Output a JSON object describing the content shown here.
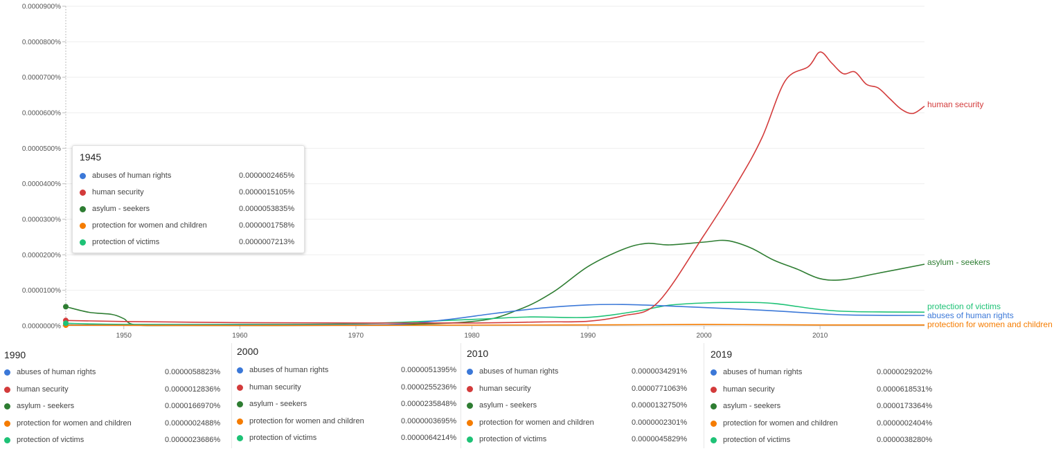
{
  "chart_data": {
    "type": "line",
    "title": "",
    "xlabel": "",
    "ylabel": "",
    "xlim": [
      1945,
      2019
    ],
    "ylim": [
      0,
      9e-07
    ],
    "x_ticks": [
      "1950",
      "1960",
      "1970",
      "1980",
      "1990",
      "2000",
      "2010"
    ],
    "y_ticks": [
      "0.0000000%",
      "0.0000100%",
      "0.0000200%",
      "0.0000300%",
      "0.0000400%",
      "0.0000500%",
      "0.0000600%",
      "0.0000700%",
      "0.0000800%",
      "0.0000900%"
    ],
    "grid": true,
    "series": [
      {
        "name": "abuses of human rights",
        "color": "#3b78d8",
        "points": [
          [
            1945,
            2.5e-09
          ],
          [
            1950,
            2e-09
          ],
          [
            1960,
            2e-09
          ],
          [
            1970,
            3e-09
          ],
          [
            1974,
            5e-09
          ],
          [
            1978,
            1.8e-08
          ],
          [
            1982,
            3.5e-08
          ],
          [
            1986,
            5e-08
          ],
          [
            1990,
            5.88e-08
          ],
          [
            1993,
            6e-08
          ],
          [
            1996,
            5.7e-08
          ],
          [
            2000,
            5.14e-08
          ],
          [
            2005,
            4.4e-08
          ],
          [
            2010,
            3.43e-08
          ],
          [
            2013,
            3e-08
          ],
          [
            2019,
            2.92e-08
          ]
        ]
      },
      {
        "name": "human security",
        "color": "#d33b3b",
        "points": [
          [
            1945,
            1.5e-08
          ],
          [
            1950,
            1.2e-08
          ],
          [
            1960,
            9e-09
          ],
          [
            1970,
            8e-09
          ],
          [
            1980,
            8e-09
          ],
          [
            1986,
            1.1e-08
          ],
          [
            1990,
            1.28e-08
          ],
          [
            1993,
            2.8e-08
          ],
          [
            1996,
            6.5e-08
          ],
          [
            2000,
            2.552e-07
          ],
          [
            2003,
            4.1e-07
          ],
          [
            2005,
            5.3e-07
          ],
          [
            2007,
            6.9e-07
          ],
          [
            2009,
            7.3e-07
          ],
          [
            2010,
            7.711e-07
          ],
          [
            2011,
            7.4e-07
          ],
          [
            2012,
            7.1e-07
          ],
          [
            2013,
            7.15e-07
          ],
          [
            2014,
            6.8e-07
          ],
          [
            2015,
            6.7e-07
          ],
          [
            2016,
            6.4e-07
          ],
          [
            2017,
            6.1e-07
          ],
          [
            2018,
            5.98e-07
          ],
          [
            2019,
            6.185e-07
          ]
        ]
      },
      {
        "name": "asylum - seekers",
        "color": "#2e7d32",
        "points": [
          [
            1945,
            5.38e-08
          ],
          [
            1947,
            3.8e-08
          ],
          [
            1949,
            3.2e-08
          ],
          [
            1950,
            2e-08
          ],
          [
            1951,
            3e-09
          ],
          [
            1955,
            1e-09
          ],
          [
            1970,
            2e-09
          ],
          [
            1980,
            1.2e-08
          ],
          [
            1984,
            4.5e-08
          ],
          [
            1987,
            9.5e-08
          ],
          [
            1990,
            1.67e-07
          ],
          [
            1993,
            2.15e-07
          ],
          [
            1995,
            2.32e-07
          ],
          [
            1997,
            2.28e-07
          ],
          [
            2000,
            2.358e-07
          ],
          [
            2002,
            2.4e-07
          ],
          [
            2004,
            2.2e-07
          ],
          [
            2006,
            1.85e-07
          ],
          [
            2008,
            1.6e-07
          ],
          [
            2010,
            1.328e-07
          ],
          [
            2012,
            1.3e-07
          ],
          [
            2015,
            1.48e-07
          ],
          [
            2019,
            1.734e-07
          ]
        ]
      },
      {
        "name": "protection for women and children",
        "color": "#f57c00",
        "points": [
          [
            1945,
            1.8e-09
          ],
          [
            1960,
            1e-09
          ],
          [
            1980,
            2e-09
          ],
          [
            1990,
            2.5e-09
          ],
          [
            2000,
            3.7e-09
          ],
          [
            2010,
            2.3e-09
          ],
          [
            2019,
            2.4e-09
          ]
        ]
      },
      {
        "name": "protection of victims",
        "color": "#1ec276",
        "points": [
          [
            1945,
            7.2e-09
          ],
          [
            1950,
            4e-09
          ],
          [
            1960,
            4e-09
          ],
          [
            1970,
            6e-09
          ],
          [
            1980,
            1.8e-08
          ],
          [
            1985,
            2.5e-08
          ],
          [
            1990,
            2.37e-08
          ],
          [
            1994,
            4e-08
          ],
          [
            1997,
            5.8e-08
          ],
          [
            2000,
            6.42e-08
          ],
          [
            2003,
            6.6e-08
          ],
          [
            2006,
            6.3e-08
          ],
          [
            2010,
            4.58e-08
          ],
          [
            2013,
            4e-08
          ],
          [
            2019,
            3.83e-08
          ]
        ]
      }
    ]
  },
  "tooltip": {
    "year": "1945",
    "rows": [
      {
        "name": "abuses of human rights",
        "value": "0.0000002465%",
        "color": "#3b78d8"
      },
      {
        "name": "human security",
        "value": "0.0000015105%",
        "color": "#d33b3b"
      },
      {
        "name": "asylum - seekers",
        "value": "0.0000053835%",
        "color": "#2e7d32"
      },
      {
        "name": "protection for women and children",
        "value": "0.0000001758%",
        "color": "#f57c00"
      },
      {
        "name": "protection of victims",
        "value": "0.0000007213%",
        "color": "#1ec276"
      }
    ]
  },
  "panels": [
    {
      "year": "1990",
      "rows": [
        {
          "name": "abuses of human rights",
          "value": "0.0000058823%",
          "color": "#3b78d8"
        },
        {
          "name": "human security",
          "value": "0.0000012836%",
          "color": "#d33b3b"
        },
        {
          "name": "asylum - seekers",
          "value": "0.0000166970%",
          "color": "#2e7d32"
        },
        {
          "name": "protection for women and children",
          "value": "0.0000002488%",
          "color": "#f57c00"
        },
        {
          "name": "protection of victims",
          "value": "0.0000023686%",
          "color": "#1ec276"
        }
      ]
    },
    {
      "year": "2000",
      "rows": [
        {
          "name": "abuses of human rights",
          "value": "0.0000051395%",
          "color": "#3b78d8"
        },
        {
          "name": "human security",
          "value": "0.0000255236%",
          "color": "#d33b3b"
        },
        {
          "name": "asylum - seekers",
          "value": "0.0000235848%",
          "color": "#2e7d32"
        },
        {
          "name": "protection for women and children",
          "value": "0.0000003695%",
          "color": "#f57c00"
        },
        {
          "name": "protection of victims",
          "value": "0.0000064214%",
          "color": "#1ec276"
        }
      ]
    },
    {
      "year": "2010",
      "rows": [
        {
          "name": "abuses of human rights",
          "value": "0.0000034291%",
          "color": "#3b78d8"
        },
        {
          "name": "human security",
          "value": "0.0000771063%",
          "color": "#d33b3b"
        },
        {
          "name": "asylum - seekers",
          "value": "0.0000132750%",
          "color": "#2e7d32"
        },
        {
          "name": "protection for women and children",
          "value": "0.0000002301%",
          "color": "#f57c00"
        },
        {
          "name": "protection of victims",
          "value": "0.0000045829%",
          "color": "#1ec276"
        }
      ]
    },
    {
      "year": "2019",
      "rows": [
        {
          "name": "abuses of human rights",
          "value": "0.0000029202%",
          "color": "#3b78d8"
        },
        {
          "name": "human security",
          "value": "0.0000618531%",
          "color": "#d33b3b"
        },
        {
          "name": "asylum - seekers",
          "value": "0.0000173364%",
          "color": "#2e7d32"
        },
        {
          "name": "protection for women and children",
          "value": "0.0000002404%",
          "color": "#f57c00"
        },
        {
          "name": "protection of victims",
          "value": "0.0000038280%",
          "color": "#1ec276"
        }
      ]
    }
  ]
}
